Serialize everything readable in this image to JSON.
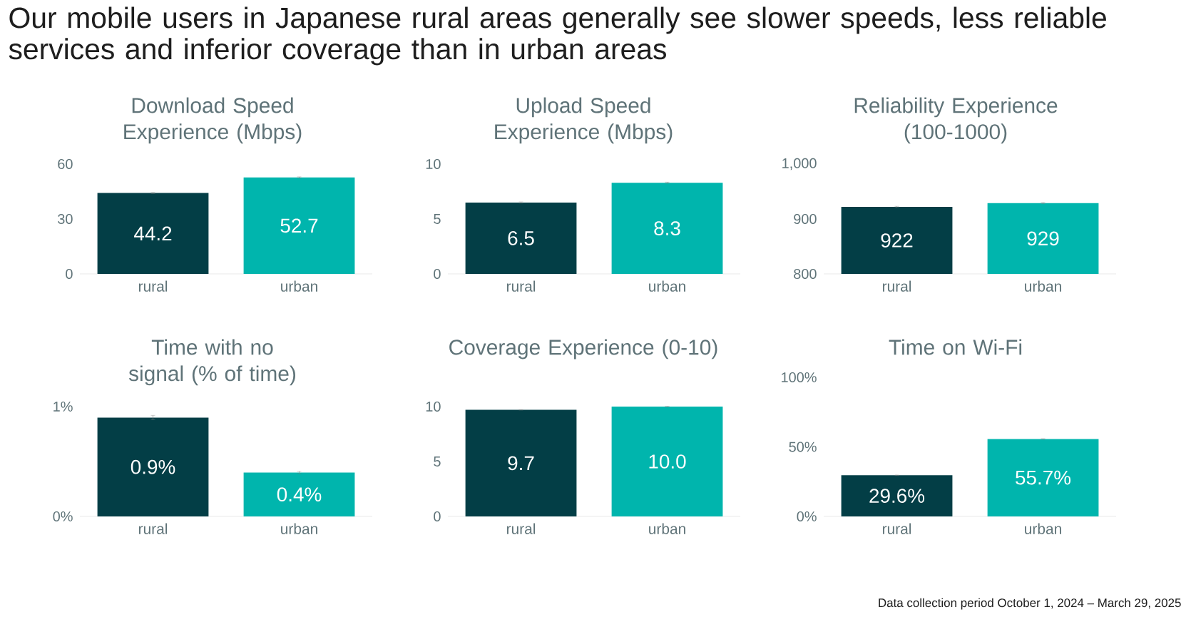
{
  "chart_data": [
    {
      "type": "bar",
      "title": "Download Speed Experience (Mbps)",
      "categories": [
        "rural",
        "urban"
      ],
      "values": [
        44.2,
        52.7
      ],
      "colors": [
        "#033e46",
        "#00b5ad"
      ],
      "errors": [
        0.3,
        0.3
      ],
      "value_labels": [
        "44.2",
        "52.7"
      ],
      "ylim": [
        0,
        60
      ],
      "yticks": [
        0,
        30,
        60
      ],
      "annotations": [
        "Our mobile users in Japanese rural areas generally see slower speeds, less reliable services and inferior coverage than in urban areas"
      ]
    },
    {
      "type": "bar",
      "title": "Upload Speed Experience (Mbps)",
      "categories": [
        "rural",
        "urban"
      ],
      "values": [
        6.5,
        8.3
      ],
      "colors": [
        "#033e46",
        "#00b5ad"
      ],
      "errors": [
        0.05,
        0.05
      ],
      "value_labels": [
        "6.5",
        "8.3"
      ],
      "ylim": [
        0,
        10
      ],
      "yticks": [
        0,
        5,
        10
      ]
    },
    {
      "type": "bar",
      "title": "Reliability Experience (100-1000)",
      "categories": [
        "rural",
        "urban"
      ],
      "values": [
        922,
        929
      ],
      "colors": [
        "#033e46",
        "#00b5ad"
      ],
      "errors": [
        1,
        1
      ],
      "value_labels": [
        "922",
        "929"
      ],
      "ylim": [
        800,
        1000
      ],
      "yticks": [
        800,
        900,
        {
          "value": 1000,
          "label": "1,000"
        }
      ]
    },
    {
      "type": "bar",
      "title": "Time with no signal (% of time)",
      "categories": [
        "rural",
        "urban"
      ],
      "values": [
        0.9,
        0.4
      ],
      "colors": [
        "#033e46",
        "#00b5ad"
      ],
      "errors": [
        0.02,
        0.01
      ],
      "value_labels": [
        "0.9%",
        "0.4%"
      ],
      "ylim": [
        0,
        1
      ],
      "yticks": [
        {
          "value": 0,
          "label": "0%"
        },
        {
          "value": 1,
          "label": "1%"
        }
      ]
    },
    {
      "type": "bar",
      "title": "Coverage Experience (0-10)",
      "categories": [
        "rural",
        "urban"
      ],
      "values": [
        9.7,
        10
      ],
      "colors": [
        "#033e46",
        "#00b5ad"
      ],
      "errors": [
        0.02,
        0.02
      ],
      "value_labels": [
        "9.7",
        "10.0"
      ],
      "ylim": [
        0,
        10
      ],
      "yticks": [
        0,
        5,
        10
      ]
    },
    {
      "type": "bar",
      "title": "Time on Wi-Fi",
      "categories": [
        "rural",
        "urban"
      ],
      "values": [
        29.6,
        55.7
      ],
      "colors": [
        "#033e46",
        "#00b5ad"
      ],
      "errors": [
        0.2,
        0.2
      ],
      "value_labels": [
        "29.6%",
        "55.7%"
      ],
      "ylim": [
        0,
        100
      ],
      "yticks": [
        {
          "value": 0,
          "label": "0%"
        },
        {
          "value": 50,
          "label": "50%"
        },
        {
          "value": 100,
          "label": "100%"
        }
      ],
      "annotations": [
        "Data collection period October 1, 2024 – March 29, 2025"
      ]
    }
  ]
}
